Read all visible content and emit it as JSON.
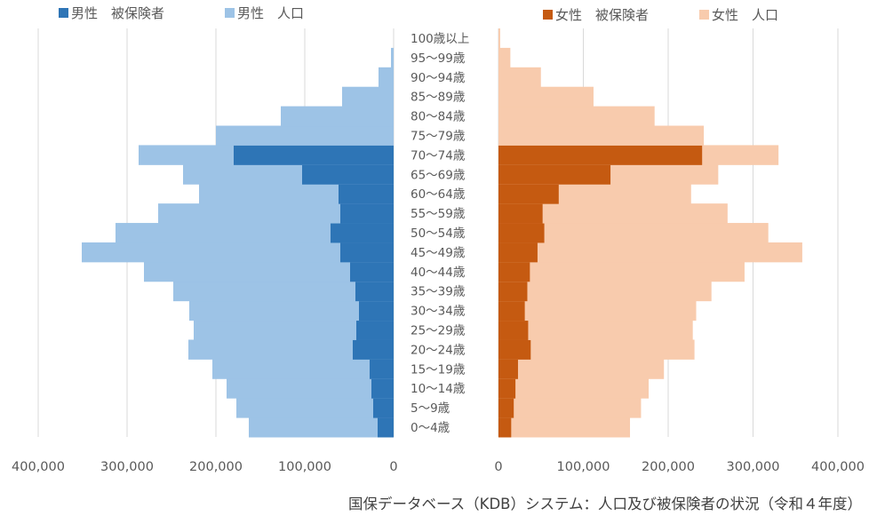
{
  "chart_data": [
    {
      "type": "bar",
      "orientation": "horizontal",
      "side": "left",
      "categories": [
        "0〜4歳",
        "5〜9歳",
        "10〜14歳",
        "15〜19歳",
        "20〜24歳",
        "25〜29歳",
        "30〜34歳",
        "35〜39歳",
        "40〜44歳",
        "45〜49歳",
        "50〜54歳",
        "55〜59歳",
        "60〜64歳",
        "65〜69歳",
        "70〜74歳",
        "75〜79歳",
        "80〜84歳",
        "85〜89歳",
        "90〜94歳",
        "95〜99歳",
        "100歳以上"
      ],
      "series": [
        {
          "name": "男性　被保険者",
          "color": "#2e75b6",
          "values": [
            18000,
            23000,
            25000,
            27000,
            46000,
            42000,
            39000,
            43000,
            49000,
            60000,
            71000,
            60000,
            62000,
            103000,
            180000,
            0,
            0,
            0,
            0,
            0,
            0
          ]
        },
        {
          "name": "男性　人口",
          "color": "#9dc3e6",
          "values": [
            163000,
            177000,
            188000,
            204000,
            231000,
            225000,
            230000,
            248000,
            281000,
            351000,
            313000,
            265000,
            219000,
            237000,
            287000,
            200000,
            127000,
            58000,
            17000,
            3000,
            0
          ]
        }
      ],
      "xlim": [
        0,
        400000
      ],
      "xaxis_reversed": true,
      "tick_labels": [
        "400,000",
        "300,000",
        "200,000",
        "100,000",
        "0"
      ],
      "grid": true
    },
    {
      "type": "bar",
      "orientation": "horizontal",
      "side": "right",
      "categories": [
        "0〜4歳",
        "5〜9歳",
        "10〜14歳",
        "15〜19歳",
        "20〜24歳",
        "25〜29歳",
        "30〜34歳",
        "35〜39歳",
        "40〜44歳",
        "45〜49歳",
        "50〜54歳",
        "55〜59歳",
        "60〜64歳",
        "65〜69歳",
        "70〜74歳",
        "75〜79歳",
        "80〜84歳",
        "85〜89歳",
        "90〜94歳",
        "95〜99歳",
        "100歳以上"
      ],
      "series": [
        {
          "name": "女性　被保険者",
          "color": "#c55a11",
          "values": [
            15000,
            18000,
            20000,
            23000,
            38000,
            35000,
            31000,
            34000,
            37000,
            46000,
            54000,
            52000,
            71000,
            132000,
            240000,
            0,
            0,
            0,
            0,
            0,
            0
          ]
        },
        {
          "name": "女性　人口",
          "color": "#f8cbad",
          "values": [
            155000,
            168000,
            177000,
            195000,
            231000,
            229000,
            233000,
            251000,
            290000,
            358000,
            318000,
            270000,
            227000,
            259000,
            330000,
            242000,
            184000,
            112000,
            50000,
            14000,
            2000
          ]
        }
      ],
      "xlim": [
        0,
        400000
      ],
      "tick_labels": [
        "0",
        "100,000",
        "200,000",
        "300,000",
        "400,000"
      ],
      "grid": true
    }
  ],
  "source": "国保データベース（KDB）システム：人口及び被保険者の状況（令和４年度）"
}
